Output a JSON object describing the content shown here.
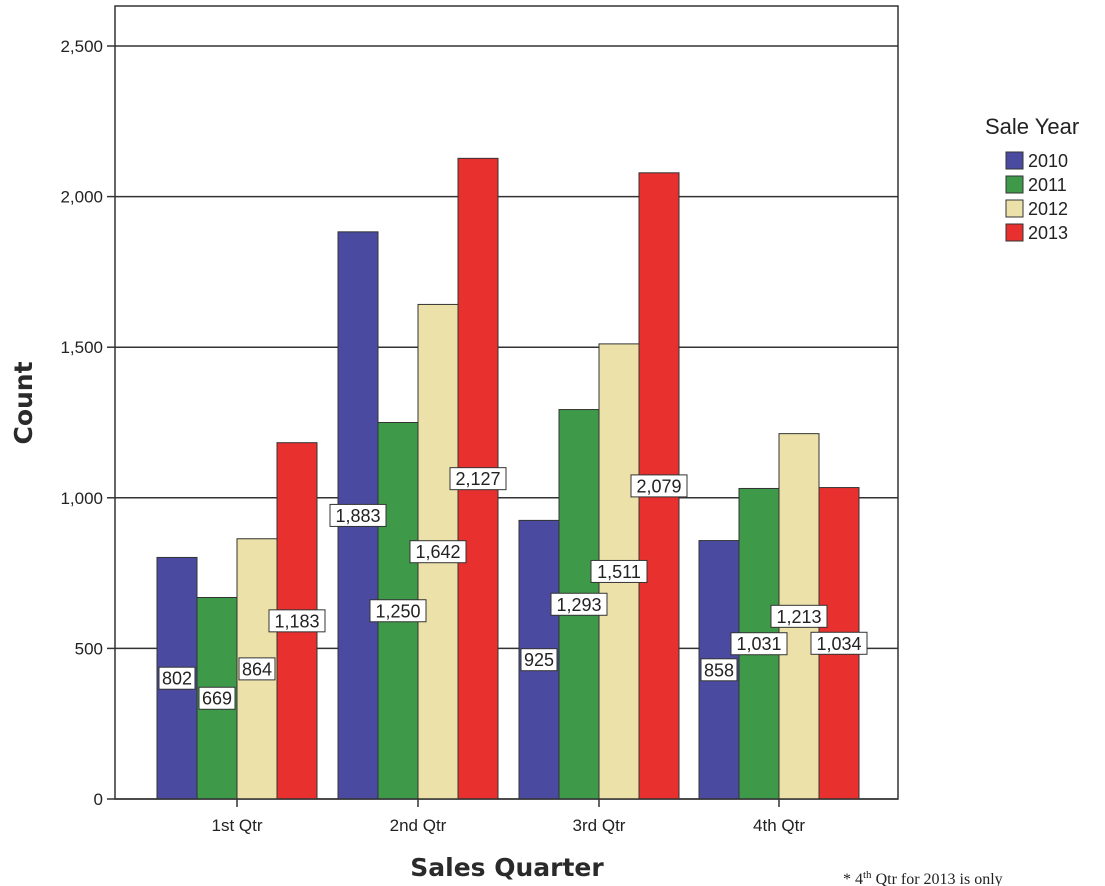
{
  "chart_data": {
    "type": "bar",
    "xlabel": "Sales Quarter",
    "ylabel": "Count",
    "legend_title": "Sale Year",
    "legend_position": "right",
    "grid": true,
    "ylim": [
      0,
      2500
    ],
    "y_ticks": [
      "0",
      "500",
      "1,000",
      "1,500",
      "2,000",
      "2,500"
    ],
    "y_tick_values": [
      0,
      500,
      1000,
      1500,
      2000,
      2500
    ],
    "categories": [
      "1st Qtr",
      "2nd Qtr",
      "3rd Qtr",
      "4th Qtr"
    ],
    "series": [
      {
        "name": "2010",
        "color": "#4a4ba0",
        "values": [
          802,
          1883,
          925,
          858
        ],
        "labels": [
          "802",
          "1,883",
          "925",
          "858"
        ]
      },
      {
        "name": "2011",
        "color": "#3e9a48",
        "values": [
          669,
          1250,
          1293,
          1031
        ],
        "labels": [
          "669",
          "1,250",
          "1,293",
          "1,031"
        ]
      },
      {
        "name": "2012",
        "color": "#ece2a9",
        "values": [
          864,
          1642,
          1511,
          1213
        ],
        "labels": [
          "864",
          "1,642",
          "1,511",
          "1,213"
        ]
      },
      {
        "name": "2013",
        "color": "#e8302e",
        "values": [
          1183,
          2127,
          2079,
          1034
        ],
        "labels": [
          "1,183",
          "2,127",
          "2,079",
          "1,034"
        ]
      }
    ],
    "footnote": {
      "prefix": "* 4",
      "superscript": "th",
      "suffix": " Qtr for 2013 is only"
    }
  }
}
